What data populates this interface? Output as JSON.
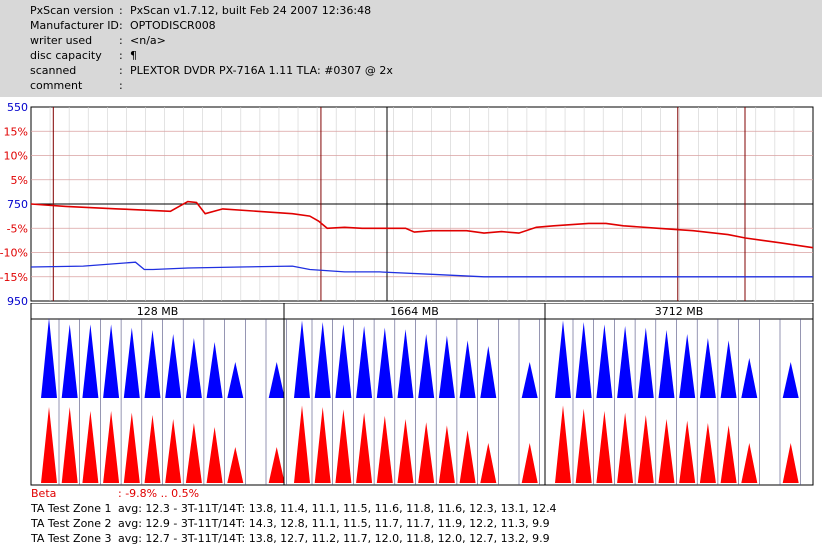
{
  "header": {
    "rows": [
      {
        "label": "PxScan version",
        "value": "PxScan v1.7.12, built Feb 24 2007 12:36:48"
      },
      {
        "label": "Manufacturer ID",
        "value": "OPTODISCR008"
      },
      {
        "label": "writer used",
        "value": "<n/a>"
      },
      {
        "label": "disc capacity",
        "value": "¶"
      },
      {
        "label": "scanned",
        "value": "PLEXTOR DVDR PX-716A 1.11 TLA: #0307 @ 2x"
      },
      {
        "label": "comment",
        "value": ""
      }
    ]
  },
  "colors": {
    "jitter": "#e00000",
    "beta": "#2030e0",
    "blue_ticks": "#0000cc",
    "red_ticks": "#e00000",
    "grid": "#d9a0a0",
    "grid_minor": "#d0d0d0",
    "divider": "#800000",
    "ta_top": "#0000ff",
    "ta_bottom": "#ff0000"
  },
  "chart_data": [
    {
      "type": "line",
      "left_axis_ticks": [
        {
          "label": "550",
          "color": "blue"
        },
        {
          "label": "15%",
          "color": "red"
        },
        {
          "label": "10%",
          "color": "red"
        },
        {
          "label": "5%",
          "color": "red"
        },
        {
          "label": "750",
          "color": "blue"
        },
        {
          "label": "-5%",
          "color": "red"
        },
        {
          "label": "-10%",
          "color": "red"
        },
        {
          "label": "-15%",
          "color": "red"
        },
        {
          "label": "950",
          "color": "blue"
        }
      ],
      "ylim": [
        -20,
        20
      ],
      "x_range_mb": [
        0,
        4488
      ],
      "series": [
        {
          "color": "red",
          "x": [
            0,
            200,
            500,
            800,
            900,
            950,
            1000,
            1100,
            1300,
            1500,
            1600,
            1650,
            1700,
            1800,
            1900,
            2000,
            2150,
            2200,
            2300,
            2500,
            2600,
            2700,
            2800,
            2900,
            3000,
            3200,
            3300,
            3400,
            3600,
            3800,
            4000,
            4100,
            4200,
            4300,
            4488
          ],
          "values": [
            0,
            -0.5,
            -1.0,
            -1.5,
            0.5,
            0.3,
            -2.0,
            -1.0,
            -1.5,
            -2.0,
            -2.5,
            -3.5,
            -5.0,
            -4.8,
            -5.0,
            -5.0,
            -5.0,
            -5.8,
            -5.5,
            -5.5,
            -6.0,
            -5.7,
            -6.0,
            -4.8,
            -4.5,
            -4.0,
            -4.0,
            -4.5,
            -5.0,
            -5.5,
            -6.3,
            -7.0,
            -7.5,
            -8.0,
            -9.0
          ]
        },
        {
          "color": "blue",
          "x": [
            0,
            300,
            600,
            650,
            700,
            900,
            1200,
            1500,
            1600,
            1800,
            2000,
            2300,
            2600,
            3000,
            3500,
            4000,
            4488
          ],
          "values": [
            -13,
            -12.8,
            -12,
            -13.5,
            -13.5,
            -13.2,
            -13,
            -12.8,
            -13.5,
            -14,
            -14,
            -14.5,
            -15,
            -15,
            -15,
            -15,
            -15
          ]
        }
      ],
      "markers_mb": [
        128,
        1664,
        3712
      ]
    },
    {
      "type": "area",
      "sections": [
        {
          "label": "128 MB",
          "peaks_top": [
            1.0,
            0.92,
            0.92,
            0.92,
            0.88,
            0.85,
            0.8,
            0.75,
            0.7,
            0.45,
            0.0,
            0.45
          ],
          "peaks_bottom": [
            0.95,
            0.95,
            0.9,
            0.9,
            0.88,
            0.85,
            0.8,
            0.75,
            0.7,
            0.45,
            0.0,
            0.45
          ]
        },
        {
          "label": "1664 MB",
          "peaks_top": [
            0.97,
            0.95,
            0.92,
            0.9,
            0.88,
            0.86,
            0.8,
            0.78,
            0.72,
            0.65,
            0.0,
            0.45
          ],
          "peaks_bottom": [
            0.97,
            0.95,
            0.92,
            0.88,
            0.84,
            0.8,
            0.76,
            0.72,
            0.66,
            0.5,
            0.0,
            0.5
          ]
        },
        {
          "label": "3712 MB",
          "peaks_top": [
            0.97,
            0.95,
            0.92,
            0.9,
            0.88,
            0.85,
            0.8,
            0.75,
            0.72,
            0.5,
            0.0,
            0.45
          ],
          "peaks_bottom": [
            0.97,
            0.93,
            0.9,
            0.88,
            0.85,
            0.8,
            0.78,
            0.75,
            0.72,
            0.5,
            0.0,
            0.5
          ]
        }
      ]
    }
  ],
  "footer": {
    "beta_label": "Beta",
    "beta_value": ": -9.8% .. 0.5%",
    "zones": [
      {
        "label": "TA Test Zone 1",
        "value": "avg: 12.3 - 3T-11T/14T: 13.8, 11.4, 11.1, 11.5, 11.6, 11.8, 11.6, 12.3, 13.1, 12.4"
      },
      {
        "label": "TA Test Zone 2",
        "value": "avg: 12.9 - 3T-11T/14T: 14.3, 12.8, 11.1, 11.5, 11.7, 11.7, 11.9, 12.2, 11.3, 9.9"
      },
      {
        "label": "TA Test Zone 3",
        "value": "avg: 12.7 - 3T-11T/14T: 13.8, 12.7, 11.2, 11.7, 12.0, 11.8, 12.0, 12.7, 13.2, 9.9"
      }
    ]
  }
}
